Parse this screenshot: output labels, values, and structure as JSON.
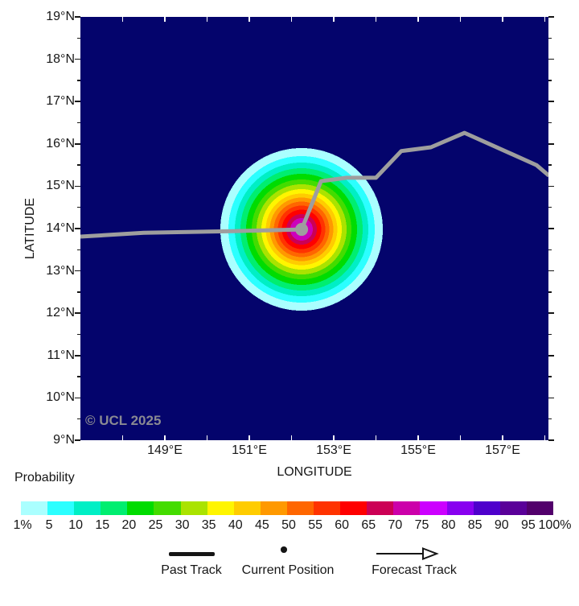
{
  "figure": {
    "watermark": "© UCL 2025",
    "colors": {
      "map_background": "#04046C",
      "track_gray": "#9E9E9E",
      "tick_inner": "#FFFFFF",
      "tick_outer": "#151515"
    }
  },
  "chart_data": {
    "type": "heatmap",
    "title": "",
    "xlabel": "LONGITUDE",
    "ylabel": "LATITUDE",
    "x_tick_labels": [
      "149°E",
      "151°E",
      "153°E",
      "155°E",
      "157°E"
    ],
    "y_tick_labels": [
      "19°N",
      "18°N",
      "17°N",
      "16°N",
      "15°N",
      "14°N",
      "13°N",
      "12°N",
      "11°N",
      "10°N",
      "9°N"
    ],
    "x_range_deg_east": [
      147.0,
      158.1
    ],
    "y_range_deg_north": [
      9.0,
      19.0
    ],
    "grid": false,
    "probability_field": {
      "description": "strike probability bullseye centered at current storm position",
      "center_lon_e": 152.24,
      "center_lat_n": 13.98,
      "rings_inner_to_outer": [
        {
          "probability_pct": 70,
          "color": "#CC00BB",
          "outer_radius_px": 14
        },
        {
          "probability_pct": 65,
          "color": "#CC0055",
          "outer_radius_px": 19
        },
        {
          "probability_pct": 60,
          "color": "#FF0000",
          "outer_radius_px": 24.5
        },
        {
          "probability_pct": 55,
          "color": "#FF3300",
          "outer_radius_px": 29.5
        },
        {
          "probability_pct": 50,
          "color": "#FF6600",
          "outer_radius_px": 34.5
        },
        {
          "probability_pct": 45,
          "color": "#FF9900",
          "outer_radius_px": 39.5
        },
        {
          "probability_pct": 40,
          "color": "#FFCC00",
          "outer_radius_px": 44.5
        },
        {
          "probability_pct": 35,
          "color": "#FFF500",
          "outer_radius_px": 50
        },
        {
          "probability_pct": 30,
          "color": "#AAE300",
          "outer_radius_px": 56
        },
        {
          "probability_pct": 25,
          "color": "#44DC00",
          "outer_radius_px": 62
        },
        {
          "probability_pct": 20,
          "color": "#00DC00",
          "outer_radius_px": 69
        },
        {
          "probability_pct": 15,
          "color": "#00EE70",
          "outer_radius_px": 76
        },
        {
          "probability_pct": 10,
          "color": "#00EFC5",
          "outer_radius_px": 83
        },
        {
          "probability_pct": 5,
          "color": "#2BFFFF",
          "outer_radius_px": 91
        },
        {
          "probability_pct": 1,
          "color": "#AAFFFF",
          "outer_radius_px": 101
        }
      ]
    },
    "current_position": {
      "lon_e": 152.24,
      "lat_n": 13.98
    },
    "past_track_lon_lat": [
      [
        147.0,
        13.81
      ],
      [
        148.5,
        13.9
      ],
      [
        150.6,
        13.94
      ],
      [
        152.24,
        13.98
      ]
    ],
    "forecast_track_lon_lat": [
      [
        152.24,
        13.98
      ],
      [
        152.7,
        15.12
      ],
      [
        153.3,
        15.2
      ],
      [
        154.0,
        15.2
      ],
      [
        154.6,
        15.83
      ],
      [
        155.3,
        15.92
      ],
      [
        156.1,
        16.26
      ],
      [
        157.8,
        15.5
      ],
      [
        158.1,
        15.25
      ]
    ],
    "colorbar": {
      "label": "Probability",
      "tick_labels": [
        "1%",
        "5",
        "10",
        "15",
        "20",
        "25",
        "30",
        "35",
        "40",
        "45",
        "50",
        "55",
        "60",
        "65",
        "70",
        "75",
        "80",
        "85",
        "90",
        "95",
        "100%"
      ],
      "segment_colors": [
        "#AAFFFF",
        "#2BFFFF",
        "#00EFC5",
        "#00EE70",
        "#00DC00",
        "#44DC00",
        "#AAE300",
        "#FFF500",
        "#FFCC00",
        "#FF9900",
        "#FF6600",
        "#FF3300",
        "#FF0000",
        "#CC0055",
        "#CC00AA",
        "#CC00FF",
        "#8800F0",
        "#4E00CC",
        "#5A0099",
        "#52006B"
      ]
    },
    "legend": [
      {
        "label": "Past Track",
        "symbol": "thick-line"
      },
      {
        "label": "Current Position",
        "symbol": "dot"
      },
      {
        "label": "Forecast Track",
        "symbol": "arrow-line"
      }
    ]
  }
}
